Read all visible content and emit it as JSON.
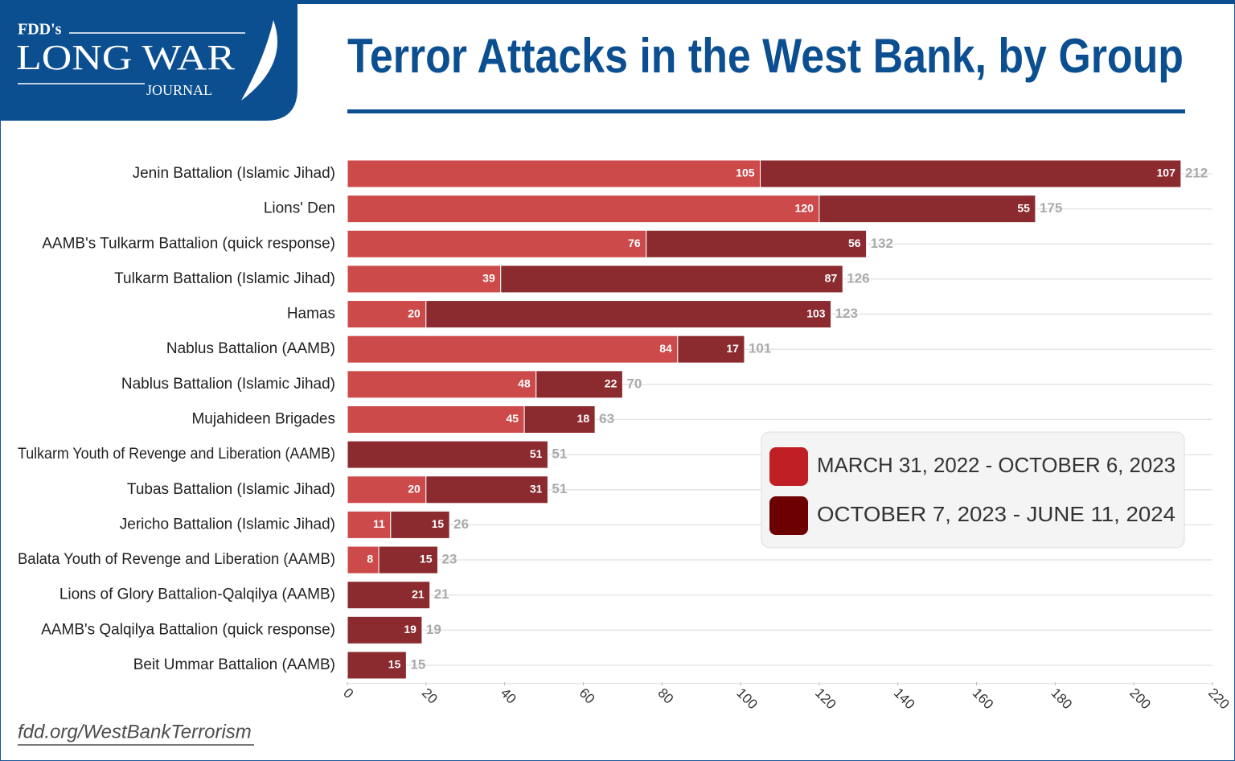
{
  "logo": {
    "top": "FDD's",
    "main": "LONG WAR",
    "bottom": "JOURNAL"
  },
  "footer": "fdd.org/WestBankTerrorism",
  "chart_data": {
    "type": "stacked-bar-horizontal",
    "title": "Terror Attacks in the West Bank, by Group",
    "categories": [
      "Jenin Battalion (Islamic Jihad)",
      "Lions' Den",
      "AAMB's Tulkarm Battalion (quick response)",
      "Tulkarm Battalion (Islamic Jihad)",
      "Hamas",
      "Nablus Battalion (AAMB)",
      "Nablus Battalion (Islamic Jihad)",
      "Mujahideen Brigades",
      "Tulkarm Youth of Revenge and Liberation (AAMB)",
      "Tubas Battalion (Islamic Jihad)",
      "Jericho Battalion (Islamic Jihad)",
      "Balata Youth of Revenge and Liberation (AAMB)",
      "Lions of Glory Battalion-Qalqilya (AAMB)",
      "AAMB's Qalqilya Battalion (quick response)",
      "Beit Ummar Battalion (AAMB)"
    ],
    "series": [
      {
        "name": "MARCH 31, 2022 - OCTOBER 6, 2023",
        "color": "#cd4a4b",
        "legend_color": "#c01f26",
        "values": [
          105,
          120,
          76,
          39,
          20,
          84,
          48,
          45,
          null,
          20,
          11,
          8,
          null,
          null,
          null
        ]
      },
      {
        "name": "OCTOBER 7, 2023 - JUNE 11, 2024",
        "color": "#8b2b2f",
        "legend_color": "#6c0000",
        "values": [
          107,
          55,
          56,
          87,
          103,
          17,
          22,
          18,
          51,
          31,
          15,
          15,
          21,
          19,
          15
        ]
      }
    ],
    "totals": [
      212,
      175,
      132,
      126,
      123,
      101,
      70,
      63,
      51,
      51,
      26,
      23,
      21,
      19,
      15
    ],
    "xlim": [
      0,
      220
    ],
    "xticks": [
      0,
      20,
      40,
      60,
      80,
      100,
      120,
      140,
      160,
      180,
      200,
      220
    ],
    "grid": true
  }
}
